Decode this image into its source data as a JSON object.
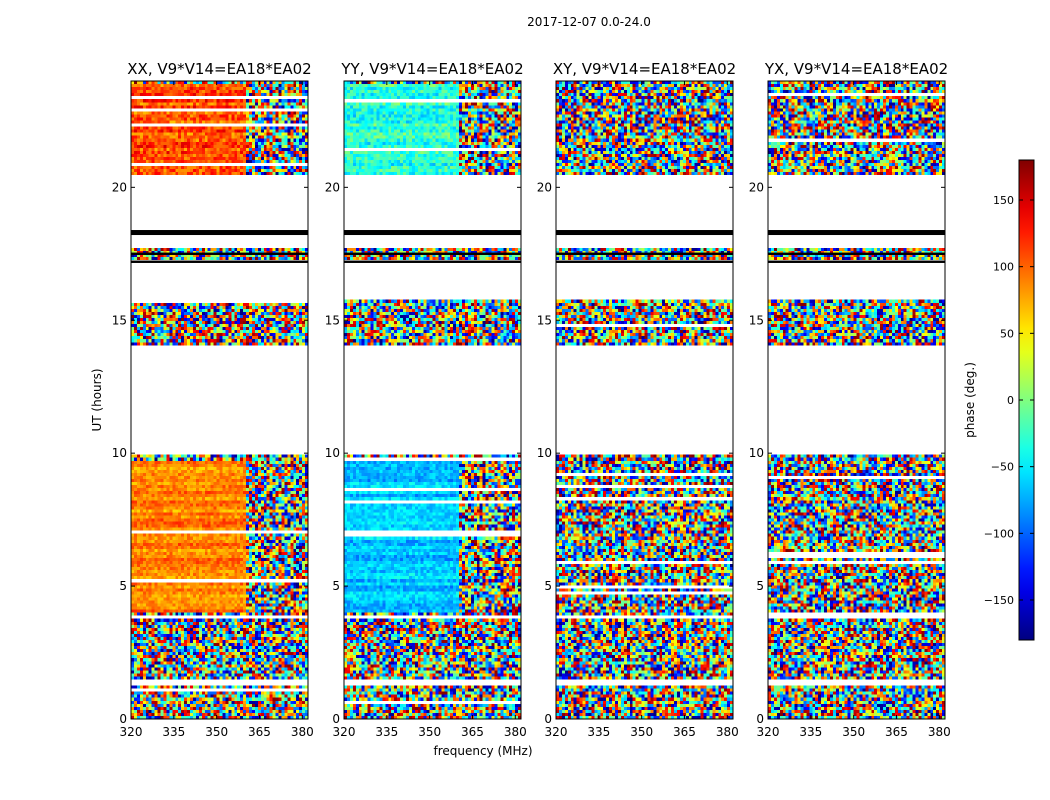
{
  "chart_data": {
    "type": "heatmap",
    "title": "2017-12-07 0.0-24.0",
    "xlabel": "frequency (MHz)",
    "ylabel": "UT (hours)",
    "xlim": [
      320,
      382
    ],
    "ylim": [
      0,
      24
    ],
    "xticks": [
      320,
      335,
      350,
      365,
      380
    ],
    "yticks": [
      0,
      5,
      10,
      15,
      20
    ],
    "panels": [
      {
        "title": "XX, V9*V14=EA18*EA02",
        "polarization": "XX",
        "mean_phase_bright": 90,
        "mean_phase_mid": 110,
        "coherent_until_mhz": 360
      },
      {
        "title": "YY, V9*V14=EA18*EA02",
        "polarization": "YY",
        "mean_phase_bright": -65,
        "mean_phase_mid": -30,
        "coherent_until_mhz": 360
      },
      {
        "title": "XY, V9*V14=EA18*EA02",
        "polarization": "XY",
        "mean_phase_bright": null,
        "mean_phase_mid": null,
        "coherent_until_mhz": null
      },
      {
        "title": "YX, V9*V14=EA18*EA02",
        "polarization": "YX",
        "mean_phase_bright": null,
        "mean_phase_mid": null,
        "coherent_until_mhz": null
      }
    ],
    "data_gaps_ut_hours": [
      [
        9.9,
        14.0
      ],
      [
        15.8,
        17.2
      ],
      [
        17.7,
        20.5
      ],
      [
        3.8,
        3.9
      ],
      [
        1.3,
        1.5
      ]
    ],
    "flagged_lines_ut_hours": [
      18.3,
      17.2,
      17.5
    ],
    "colorbar": {
      "label": "phase (deg.)",
      "range": [
        -180,
        180
      ],
      "ticks": [
        -150,
        -100,
        -50,
        0,
        50,
        100,
        150
      ],
      "tick_labels": [
        "−150",
        "−100",
        "−50",
        "0",
        "50",
        "100",
        "150"
      ],
      "colormap": "jet"
    }
  }
}
